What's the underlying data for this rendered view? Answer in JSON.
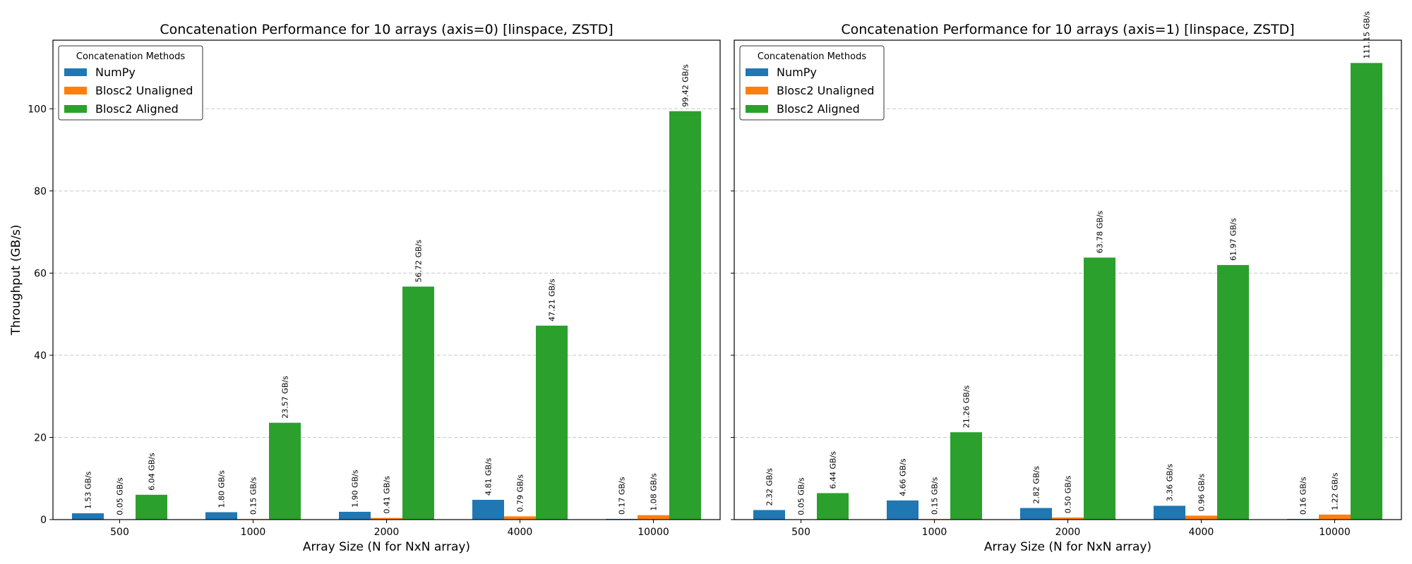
{
  "figure": {
    "ylabel": "Throughput (GB/s)",
    "legend_title": "Concatenation Methods",
    "value_suffix": " GB/s"
  },
  "chart_data": [
    {
      "type": "bar",
      "title": "Concatenation Performance for 10 arrays (axis=0) [linspace, ZSTD]",
      "xlabel": "Array Size (N for NxN array)",
      "ylabel": "Throughput (GB/s)",
      "categories": [
        "500",
        "1000",
        "2000",
        "4000",
        "10000"
      ],
      "ylim": [
        0,
        116.7
      ],
      "yticks": [
        0,
        20,
        40,
        60,
        80,
        100
      ],
      "grid": "y-dashed",
      "legend_position": "top-left",
      "series": [
        {
          "name": "NumPy",
          "color": "#1f77b4",
          "values": [
            1.53,
            1.8,
            1.9,
            4.81,
            0.17
          ]
        },
        {
          "name": "Blosc2 Unaligned",
          "color": "#ff7f0e",
          "values": [
            0.05,
            0.15,
            0.41,
            0.79,
            1.08
          ]
        },
        {
          "name": "Blosc2 Aligned",
          "color": "#2ca02c",
          "values": [
            6.04,
            23.57,
            56.72,
            47.21,
            99.42
          ]
        }
      ]
    },
    {
      "type": "bar",
      "title": "Concatenation Performance for 10 arrays (axis=1) [linspace, ZSTD]",
      "xlabel": "Array Size (N for NxN array)",
      "ylabel": "",
      "categories": [
        "500",
        "1000",
        "2000",
        "4000",
        "10000"
      ],
      "ylim": [
        0,
        116.7
      ],
      "yticks": [
        0,
        20,
        40,
        60,
        80,
        100
      ],
      "grid": "y-dashed",
      "legend_position": "top-left",
      "series": [
        {
          "name": "NumPy",
          "color": "#1f77b4",
          "values": [
            2.32,
            4.66,
            2.82,
            3.36,
            0.16
          ]
        },
        {
          "name": "Blosc2 Unaligned",
          "color": "#ff7f0e",
          "values": [
            0.05,
            0.15,
            0.5,
            0.96,
            1.22
          ]
        },
        {
          "name": "Blosc2 Aligned",
          "color": "#2ca02c",
          "values": [
            6.44,
            21.26,
            63.78,
            61.97,
            111.15
          ]
        }
      ]
    }
  ]
}
